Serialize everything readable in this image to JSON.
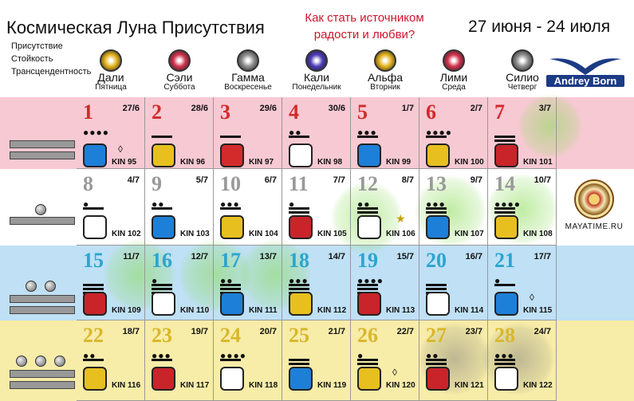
{
  "header": {
    "title": "Космическая Луна Присутствия",
    "subtitles": [
      "Присутствие",
      "Стойкость",
      "Трансцендентность"
    ],
    "question": "Как стать источником радости и любви?",
    "dates": "27 июня - 24 июля"
  },
  "logo": {
    "text": "Andrey Born"
  },
  "mayatime": {
    "text": "MAYATIME.RU"
  },
  "days": [
    {
      "name": "Дали",
      "weekday": "Пятница",
      "color": "#e3b21a"
    },
    {
      "name": "Сэли",
      "weekday": "Суббота",
      "color": "#d1324d"
    },
    {
      "name": "Гамма",
      "weekday": "Воскресенье",
      "color": "#8c8c8c"
    },
    {
      "name": "Кали",
      "weekday": "Понедельник",
      "color": "#4b3bb8"
    },
    {
      "name": "Альфа",
      "weekday": "Вторник",
      "color": "#e3b21a"
    },
    {
      "name": "Лими",
      "weekday": "Среда",
      "color": "#d1324d"
    },
    {
      "name": "Силио",
      "weekday": "Четверг",
      "color": "#8c8c8c"
    }
  ],
  "weeks": [
    {
      "band_color": "#f7c9d3",
      "num_color": "#d22a2a",
      "cells": [
        {
          "n": "1",
          "date": "27/6",
          "kin": "KIN 95",
          "dots": 4,
          "bars": 0,
          "glyph": "#1e7fd8",
          "portal": true
        },
        {
          "n": "2",
          "date": "28/6",
          "kin": "KIN 96",
          "dots": 0,
          "bars": 1,
          "glyph": "#e7c020"
        },
        {
          "n": "3",
          "date": "29/6",
          "kin": "KIN 97",
          "dots": 0,
          "bars": 1,
          "glyph": "#d32b2b"
        },
        {
          "n": "4",
          "date": "30/6",
          "kin": "KIN 98",
          "dots": 2,
          "bars": 1,
          "glyph": "#ffffff"
        },
        {
          "n": "5",
          "date": "1/7",
          "kin": "KIN 99",
          "dots": 3,
          "bars": 1,
          "glyph": "#1e7fd8"
        },
        {
          "n": "6",
          "date": "2/7",
          "kin": "KIN 100",
          "dots": 4,
          "bars": 1,
          "glyph": "#e7c020"
        },
        {
          "n": "7",
          "date": "3/7",
          "kin": "KIN 101",
          "dots": 0,
          "bars": 2,
          "glyph": "#c8242a"
        }
      ]
    },
    {
      "band_color": "#ffffff",
      "num_color": "#999999",
      "cells": [
        {
          "n": "8",
          "date": "4/7",
          "kin": "KIN 102",
          "dots": 1,
          "bars": 1,
          "glyph": "#ffffff"
        },
        {
          "n": "9",
          "date": "5/7",
          "kin": "KIN 103",
          "dots": 2,
          "bars": 1,
          "glyph": "#1e7fd8"
        },
        {
          "n": "10",
          "date": "6/7",
          "kin": "KIN 104",
          "dots": 3,
          "bars": 1,
          "glyph": "#e7c020"
        },
        {
          "n": "11",
          "date": "7/7",
          "kin": "KIN 105",
          "dots": 1,
          "bars": 2,
          "glyph": "#c8242a"
        },
        {
          "n": "12",
          "date": "8/7",
          "kin": "KIN 106",
          "dots": 2,
          "bars": 2,
          "glyph": "#ffffff",
          "star": true
        },
        {
          "n": "13",
          "date": "9/7",
          "kin": "KIN 107",
          "dots": 3,
          "bars": 2,
          "glyph": "#1e7fd8"
        },
        {
          "n": "14",
          "date": "10/7",
          "kin": "KIN 108",
          "dots": 4,
          "bars": 2,
          "glyph": "#e7c020"
        }
      ]
    },
    {
      "band_color": "#bfe0f5",
      "num_color": "#2aa6cf",
      "cells": [
        {
          "n": "15",
          "date": "11/7",
          "kin": "KIN 109",
          "dots": 0,
          "bars": 3,
          "glyph": "#c8242a"
        },
        {
          "n": "16",
          "date": "12/7",
          "kin": "KIN 110",
          "dots": 1,
          "bars": 3,
          "glyph": "#ffffff"
        },
        {
          "n": "17",
          "date": "13/7",
          "kin": "KIN 111",
          "dots": 2,
          "bars": 3,
          "glyph": "#1e7fd8"
        },
        {
          "n": "18",
          "date": "14/7",
          "kin": "KIN 112",
          "dots": 3,
          "bars": 3,
          "glyph": "#e7c020"
        },
        {
          "n": "19",
          "date": "15/7",
          "kin": "KIN 113",
          "dots": 4,
          "bars": 3,
          "glyph": "#c8242a"
        },
        {
          "n": "20",
          "date": "16/7",
          "kin": "KIN 114",
          "dots": 0,
          "bars": 3,
          "glyph": "#ffffff"
        },
        {
          "n": "21",
          "date": "17/7",
          "kin": "KIN 115",
          "dots": 1,
          "bars": 1,
          "glyph": "#1e7fd8",
          "portal": true
        }
      ]
    },
    {
      "band_color": "#f7eca8",
      "num_color": "#d9b72a",
      "cells": [
        {
          "n": "22",
          "date": "18/7",
          "kin": "KIN 116",
          "dots": 2,
          "bars": 1,
          "glyph": "#e7c020"
        },
        {
          "n": "23",
          "date": "19/7",
          "kin": "KIN 117",
          "dots": 3,
          "bars": 1,
          "glyph": "#c8242a"
        },
        {
          "n": "24",
          "date": "20/7",
          "kin": "KIN 118",
          "dots": 4,
          "bars": 1,
          "glyph": "#ffffff"
        },
        {
          "n": "25",
          "date": "21/7",
          "kin": "KIN 119",
          "dots": 0,
          "bars": 2,
          "glyph": "#1e7fd8"
        },
        {
          "n": "26",
          "date": "22/7",
          "kin": "KIN 120",
          "dots": 1,
          "bars": 2,
          "glyph": "#e7c020",
          "portal": true
        },
        {
          "n": "27",
          "date": "23/7",
          "kin": "KIN 121",
          "dots": 2,
          "bars": 2,
          "glyph": "#c8242a"
        },
        {
          "n": "28",
          "date": "24/7",
          "kin": "KIN 122",
          "dots": 3,
          "bars": 2,
          "glyph": "#ffffff"
        }
      ]
    }
  ]
}
